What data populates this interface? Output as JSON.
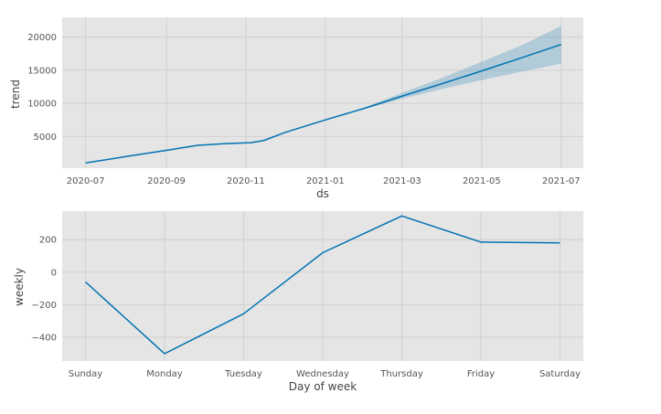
{
  "chart_data": [
    {
      "type": "line",
      "xlabel": "ds",
      "ylabel": "trend",
      "x_ticks": [
        "2020-07",
        "2020-09",
        "2020-11",
        "2021-01",
        "2021-03",
        "2021-05",
        "2021-07"
      ],
      "x_range": [
        "2020-06-13",
        "2021-07-18"
      ],
      "y_ticks": [
        5000,
        10000,
        15000,
        20000
      ],
      "ylim": [
        200,
        23000
      ],
      "grid": true,
      "colors": {
        "line": "#0072B2",
        "band": "#0072B2",
        "background": "#E5E5E5",
        "grid": "#CCCCCC"
      },
      "series": [
        {
          "x": [
            "2020-07-01",
            "2020-08-01",
            "2020-09-01",
            "2020-09-25",
            "2020-10-15",
            "2020-11-05",
            "2020-11-15",
            "2020-12-01",
            "2021-01-01",
            "2021-02-01",
            "2021-03-01",
            "2021-04-01",
            "2021-05-01",
            "2021-06-01",
            "2021-07-01"
          ],
          "y": [
            1000,
            1950,
            2900,
            3650,
            3900,
            4050,
            4400,
            5600,
            7500,
            9300,
            11100,
            13000,
            14900,
            16900,
            18900
          ]
        }
      ],
      "band": {
        "x": [
          "2021-01-01",
          "2021-02-01",
          "2021-03-01",
          "2021-04-01",
          "2021-05-01",
          "2021-06-01",
          "2021-07-01"
        ],
        "lower": [
          7500,
          9200,
          10700,
          12200,
          13500,
          14800,
          16000
        ],
        "upper": [
          7500,
          9450,
          11600,
          13900,
          16300,
          18800,
          21700
        ]
      }
    },
    {
      "type": "line",
      "xlabel": "Day of week",
      "ylabel": "weekly",
      "categories": [
        "Sunday",
        "Monday",
        "Tuesday",
        "Wednesday",
        "Thursday",
        "Friday",
        "Saturday"
      ],
      "y_ticks": [
        -400,
        -200,
        0,
        200
      ],
      "ylim": [
        -545,
        375
      ],
      "grid": true,
      "colors": {
        "line": "#0072B2",
        "background": "#E5E5E5",
        "grid": "#CCCCCC"
      },
      "series": [
        {
          "values": [
            -60,
            -500,
            -255,
            120,
            345,
            185,
            180
          ]
        }
      ]
    }
  ]
}
